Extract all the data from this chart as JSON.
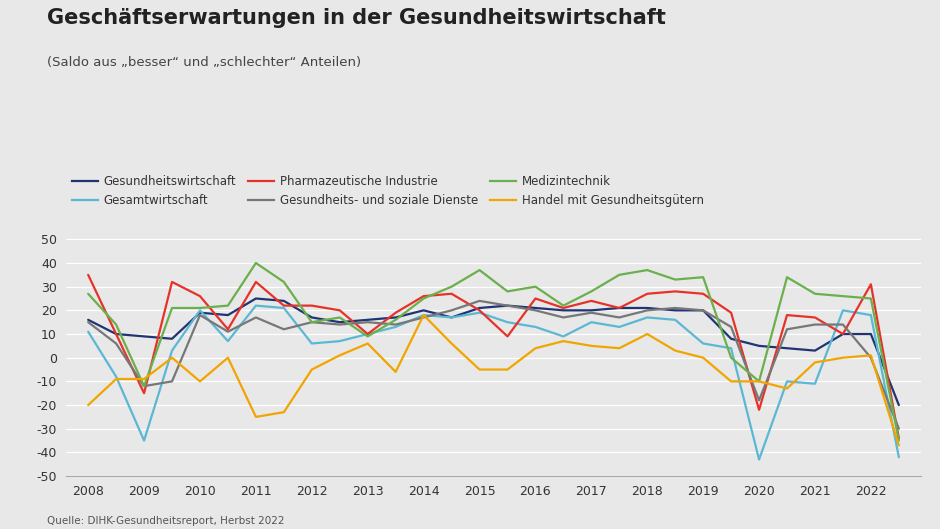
{
  "title": "Geschäftserwartungen in der Gesundheitswirtschaft",
  "subtitle": "(Saldo aus „besser“ und „schlechter“ Anteilen)",
  "source": "Quelle: DIHK-Gesundheitsreport, Herbst 2022",
  "background_color": "#e8e8e8",
  "ylim": [
    -50,
    55
  ],
  "yticks": [
    -50,
    -40,
    -30,
    -20,
    -10,
    0,
    10,
    20,
    30,
    40,
    50
  ],
  "x_labels": [
    "2008",
    "2009",
    "2010",
    "2011",
    "2012",
    "2013",
    "2014",
    "2015",
    "2016",
    "2017",
    "2018",
    "2019",
    "2020",
    "2021",
    "2022"
  ],
  "legend_order": [
    0,
    2,
    4,
    1,
    3,
    5
  ],
  "series": [
    {
      "label": "Gesundheitswirtschaft",
      "color": "#1f3474",
      "linewidth": 1.6,
      "values": [
        16,
        10,
        9,
        8,
        19,
        18,
        25,
        24,
        17,
        15,
        16,
        17,
        20,
        17,
        21,
        22,
        21,
        20,
        20,
        21,
        21,
        20,
        20,
        8,
        5,
        4,
        3,
        10,
        10,
        -20
      ]
    },
    {
      "label": "Gesamtwirtschaft",
      "color": "#5bb8d4",
      "linewidth": 1.6,
      "values": [
        11,
        -8,
        -35,
        3,
        20,
        7,
        22,
        21,
        6,
        7,
        10,
        13,
        18,
        17,
        19,
        15,
        13,
        9,
        15,
        13,
        17,
        16,
        6,
        4,
        -43,
        -10,
        -11,
        20,
        18,
        -42
      ]
    },
    {
      "label": "Pharmazeutische Industrie",
      "color": "#e63329",
      "linewidth": 1.6,
      "values": [
        35,
        10,
        -15,
        32,
        26,
        12,
        32,
        22,
        22,
        20,
        10,
        19,
        26,
        27,
        20,
        9,
        25,
        21,
        24,
        21,
        27,
        28,
        27,
        19,
        -22,
        18,
        17,
        10,
        31,
        -34
      ]
    },
    {
      "label": "Gesundheits- und soziale Dienste",
      "color": "#777777",
      "linewidth": 1.6,
      "values": [
        15,
        6,
        -12,
        -10,
        18,
        11,
        17,
        12,
        15,
        14,
        15,
        14,
        17,
        20,
        24,
        22,
        20,
        17,
        19,
        17,
        20,
        21,
        20,
        13,
        -18,
        12,
        14,
        14,
        0,
        -30
      ]
    },
    {
      "label": "Medizintechnik",
      "color": "#6ab04c",
      "linewidth": 1.6,
      "values": [
        27,
        14,
        -12,
        21,
        21,
        22,
        40,
        32,
        15,
        17,
        9,
        16,
        25,
        30,
        37,
        28,
        30,
        22,
        28,
        35,
        37,
        33,
        34,
        0,
        -10,
        34,
        27,
        26,
        25,
        -35
      ]
    },
    {
      "label": "Handel mit Gesundheitsgütern",
      "color": "#f0a500",
      "linewidth": 1.6,
      "values": [
        -20,
        -9,
        -9,
        0,
        -10,
        0,
        -25,
        -23,
        -5,
        1,
        6,
        -6,
        18,
        6,
        -5,
        -5,
        4,
        7,
        5,
        4,
        10,
        3,
        0,
        -10,
        -10,
        -13,
        -2,
        0,
        1,
        -37
      ]
    }
  ]
}
